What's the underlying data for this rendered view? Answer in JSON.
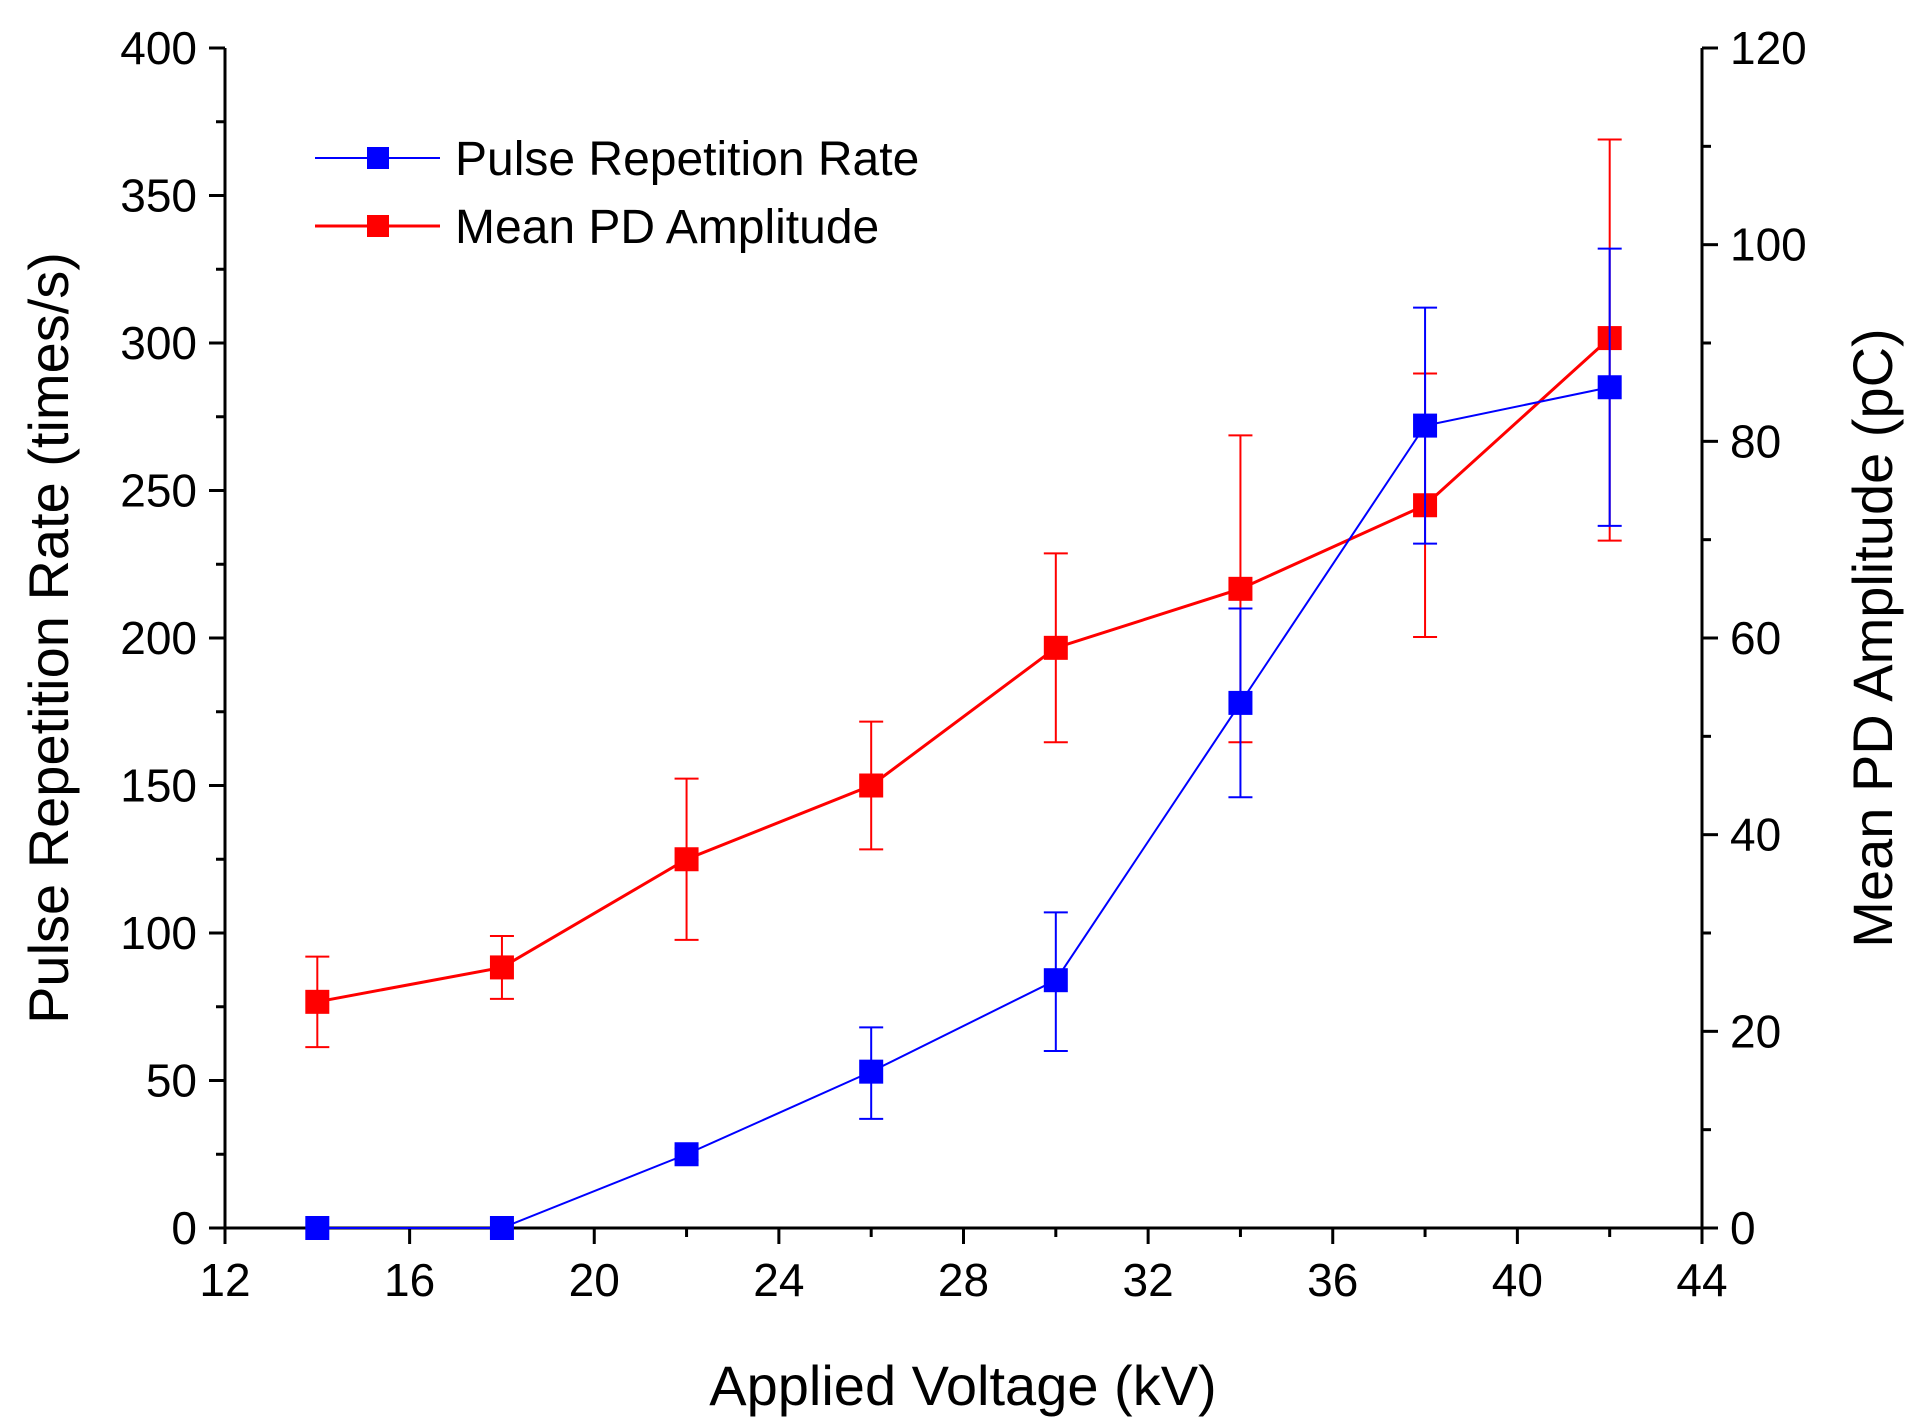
{
  "chart_data": {
    "type": "line",
    "title": "",
    "xlabel": "Applied Voltage (kV)",
    "ylabel": "Pulse Repetition Rate (times/s)",
    "y2label": "Mean PD Amplitude (pC)",
    "xlim": [
      12,
      44
    ],
    "ylim": [
      0,
      400
    ],
    "y2lim": [
      0,
      120
    ],
    "x_ticks": [
      12,
      16,
      20,
      24,
      28,
      32,
      36,
      40,
      44
    ],
    "y_ticks": [
      0,
      50,
      100,
      150,
      200,
      250,
      300,
      350,
      400
    ],
    "y2_ticks": [
      0,
      20,
      40,
      60,
      80,
      100,
      120
    ],
    "legend_position": "top-left",
    "series": [
      {
        "name": "Pulse Repetition Rate",
        "axis": "left",
        "color": "#0000ff",
        "marker": "square",
        "x": [
          14,
          18,
          22,
          26,
          30,
          34,
          38,
          42
        ],
        "values": [
          0,
          0,
          25,
          53,
          84,
          178,
          272,
          285
        ],
        "err_low": [
          0,
          0,
          2,
          16,
          24,
          32,
          40,
          47
        ],
        "err_high": [
          0,
          0,
          2,
          15,
          23,
          32,
          40,
          47
        ]
      },
      {
        "name": "Mean PD Amplitude",
        "axis": "right",
        "color": "#ff0000",
        "marker": "square",
        "x": [
          14,
          18,
          22,
          26,
          30,
          34,
          38,
          42
        ],
        "values": [
          23,
          26.5,
          37.5,
          45,
          59,
          65,
          73.5,
          90.5
        ],
        "err_low": [
          4.6,
          3.2,
          8.2,
          6.5,
          9.6,
          15.6,
          13.4,
          20.6
        ],
        "err_high": [
          4.6,
          3.2,
          8.2,
          6.5,
          9.6,
          15.6,
          13.4,
          20.2
        ]
      }
    ]
  }
}
